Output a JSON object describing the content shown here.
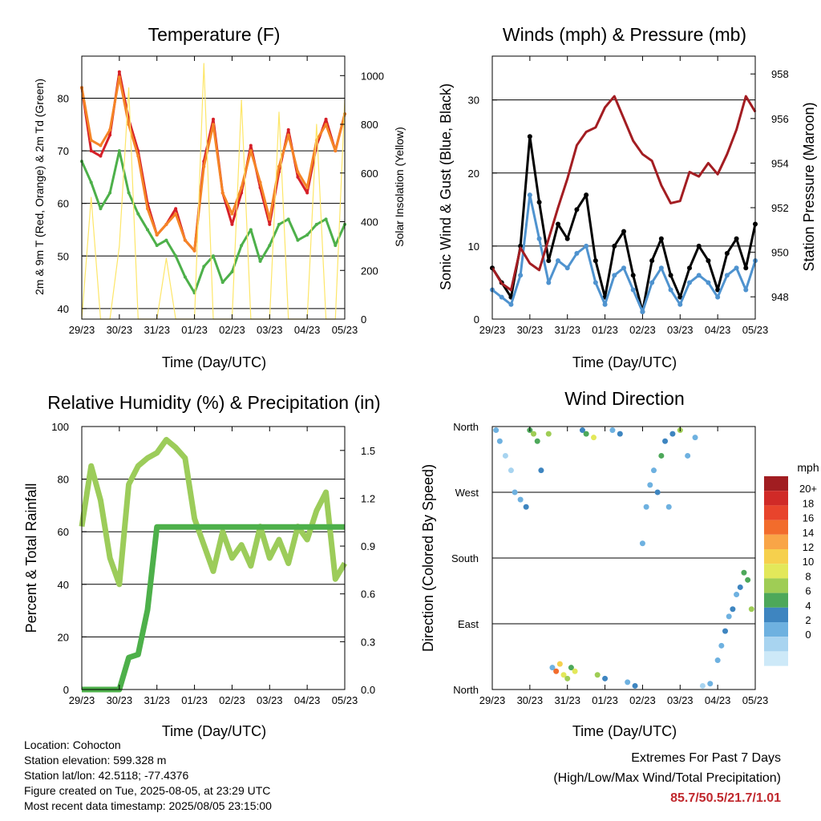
{
  "panels": {
    "temperature": {
      "title": "Temperature (F)",
      "xlabel": "Time (Day/UTC)",
      "ylabel_left": "2m & 9m T (Red, Orange) & 2m Td (Green)",
      "ylabel_right": "Solar Insolation (Yellow)"
    },
    "winds": {
      "title": "Winds (mph) & Pressure (mb)",
      "xlabel": "Time (Day/UTC)",
      "ylabel_left": "Sonic Wind & Gust (Blue, Black)",
      "ylabel_right": "Station Pressure (Maroon)"
    },
    "rh": {
      "title": "Relative Humidity (%) & Precipitation (in)",
      "xlabel": "Time (Day/UTC)",
      "ylabel_left": "Percent & Total Rainfall"
    },
    "wind_direction": {
      "title": "Wind Direction",
      "xlabel": "Time (Day/UTC)",
      "ylabel_left": "Direction (Colored By Speed)"
    }
  },
  "colorbar": {
    "unit": "mph",
    "labels": [
      "20+",
      "18",
      "16",
      "14",
      "12",
      "10",
      "8",
      "6",
      "4",
      "2",
      "0"
    ],
    "colors": [
      "#a11d21",
      "#d02a27",
      "#e8442c",
      "#f26c2c",
      "#f9a547",
      "#f6d04d",
      "#e3e85a",
      "#9fcd55",
      "#4da85a",
      "#3e85c0",
      "#6eb1e0",
      "#a8d4f0",
      "#cde9f8"
    ]
  },
  "info": {
    "location": "Location: Cohocton",
    "elevation": "Station elevation: 599.328 m",
    "latlon": "Station lat/lon: 42.5118; -77.4376",
    "created": "Figure created on Tue, 2025-08-05, at 23:29 UTC",
    "recent": "Most recent data timestamp: 2025/08/05 23:15:00"
  },
  "extremes": {
    "title": "Extremes For Past 7 Days",
    "subtitle": "(High/Low/Max Wind/Total Precipitation)",
    "values": "85.7/50.5/21.7/1.01"
  },
  "chart_data": [
    {
      "type": "line",
      "title": "Temperature (F)",
      "xlabel": "Time (Day/UTC)",
      "ylabel": "2m & 9m T (Red, Orange) & 2m Td (Green)",
      "y2label": "Solar Insolation (Yellow)",
      "x_ticks": [
        "29/23",
        "30/23",
        "31/23",
        "01/23",
        "02/23",
        "03/23",
        "04/23",
        "05/23"
      ],
      "ylim": [
        38,
        88
      ],
      "y_ticks": [
        40,
        50,
        60,
        70,
        80
      ],
      "y2lim": [
        0,
        1080
      ],
      "y2_ticks": [
        0,
        200,
        400,
        600,
        800,
        1000
      ],
      "grid": true,
      "x_days": [
        0,
        0.25,
        0.5,
        0.75,
        1,
        1.25,
        1.5,
        1.75,
        2,
        2.25,
        2.5,
        2.75,
        3,
        3.25,
        3.5,
        3.75,
        4,
        4.25,
        4.5,
        4.75,
        5,
        5.25,
        5.5,
        5.75,
        6,
        6.25,
        6.5,
        6.75,
        7
      ],
      "series": [
        {
          "color": "#d62028",
          "values": [
            82,
            70,
            69,
            73,
            85,
            76,
            70,
            60,
            54,
            56,
            59,
            53,
            51,
            68,
            76,
            62,
            56,
            62,
            71,
            63,
            56,
            66,
            74,
            65,
            62,
            71,
            76,
            70,
            77
          ]
        },
        {
          "color": "#f58426",
          "values": [
            82,
            72,
            71,
            74,
            84,
            75,
            69,
            59,
            54,
            56,
            58,
            53,
            51,
            67,
            75,
            62,
            58,
            63,
            70,
            64,
            57,
            67,
            73,
            66,
            63,
            72,
            75,
            70,
            77
          ]
        },
        {
          "color": "#4db04a",
          "values": [
            68,
            64,
            59,
            62,
            70,
            62,
            58,
            55,
            52,
            53,
            50,
            46,
            43,
            48,
            50,
            45,
            47,
            52,
            55,
            49,
            52,
            56,
            57,
            53,
            54,
            56,
            57,
            52,
            56
          ]
        },
        {
          "color": "#fde668",
          "axis": "y2",
          "values": [
            0,
            500,
            0,
            0,
            300,
            950,
            0,
            0,
            0,
            250,
            0,
            0,
            0,
            1050,
            0,
            0,
            0,
            900,
            0,
            0,
            0,
            850,
            0,
            0,
            0,
            800,
            0,
            0,
            900
          ]
        }
      ]
    },
    {
      "type": "line",
      "title": "Winds (mph) & Pressure (mb)",
      "xlabel": "Time (Day/UTC)",
      "ylabel": "Sonic Wind & Gust (Blue, Black)",
      "y2label": "Station Pressure (Maroon)",
      "x_ticks": [
        "29/23",
        "30/23",
        "31/23",
        "01/23",
        "02/23",
        "03/23",
        "04/23",
        "05/23"
      ],
      "ylim": [
        0,
        36
      ],
      "y_ticks": [
        0,
        10,
        20,
        30
      ],
      "y2lim": [
        947,
        958.8
      ],
      "y2_ticks": [
        948,
        950,
        952,
        954,
        956,
        958
      ],
      "grid": true,
      "x_days": [
        0,
        0.25,
        0.5,
        0.75,
        1,
        1.25,
        1.5,
        1.75,
        2,
        2.25,
        2.5,
        2.75,
        3,
        3.25,
        3.5,
        3.75,
        4,
        4.25,
        4.5,
        4.75,
        5,
        5.25,
        5.5,
        5.75,
        6,
        6.25,
        6.5,
        6.75,
        7
      ],
      "series": [
        {
          "color": "#000000",
          "values": [
            7,
            5,
            3,
            10,
            25,
            16,
            8,
            13,
            11,
            15,
            17,
            8,
            3,
            10,
            12,
            6,
            1,
            8,
            11,
            6,
            3,
            7,
            10,
            8,
            4,
            9,
            11,
            7,
            13
          ]
        },
        {
          "color": "#4f93cf",
          "values": [
            4,
            3,
            2,
            6,
            17,
            11,
            5,
            8,
            7,
            9,
            10,
            5,
            2,
            6,
            7,
            4,
            1,
            5,
            7,
            4,
            2,
            5,
            6,
            5,
            3,
            6,
            7,
            4,
            8
          ]
        },
        {
          "color": "#a31d22",
          "axis": "y2",
          "values": [
            949.3,
            948.6,
            948.3,
            950.2,
            949.5,
            949.2,
            950.6,
            952.0,
            953.3,
            954.8,
            955.4,
            955.6,
            956.5,
            957.0,
            956.0,
            955.0,
            954.4,
            954.1,
            953.0,
            952.2,
            952.3,
            953.6,
            953.4,
            954.0,
            953.5,
            954.4,
            955.5,
            957.0,
            956.3
          ]
        }
      ]
    },
    {
      "type": "line",
      "title": "Relative Humidity (%) & Precipitation (in)",
      "xlabel": "Time (Day/UTC)",
      "ylabel": "Percent & Total Rainfall",
      "x_ticks": [
        "29/23",
        "30/23",
        "31/23",
        "01/23",
        "02/23",
        "03/23",
        "04/23",
        "05/23"
      ],
      "ylim": [
        0,
        100
      ],
      "y_ticks": [
        0,
        20,
        40,
        60,
        80,
        100
      ],
      "y2lim": [
        0,
        1.65
      ],
      "y2_ticks": [
        0.0,
        0.3,
        0.6,
        0.9,
        1.2,
        1.5
      ],
      "grid": true,
      "x_days": [
        0,
        0.25,
        0.5,
        0.75,
        1,
        1.25,
        1.5,
        1.75,
        2,
        2.25,
        2.5,
        2.75,
        3,
        3.25,
        3.5,
        3.75,
        4,
        4.25,
        4.5,
        4.75,
        5,
        5.25,
        5.5,
        5.75,
        6,
        6.25,
        6.5,
        6.75,
        7
      ],
      "series": [
        {
          "color": "#9ccc5a",
          "values": [
            62,
            85,
            72,
            50,
            40,
            78,
            85,
            88,
            90,
            95,
            92,
            88,
            65,
            55,
            45,
            60,
            50,
            55,
            47,
            62,
            50,
            57,
            48,
            62,
            57,
            68,
            75,
            42,
            48
          ]
        },
        {
          "color": "#4db04a",
          "axis": "y2",
          "values": [
            0,
            0,
            0,
            0,
            0,
            0.2,
            0.22,
            0.5,
            1.02,
            1.02,
            1.02,
            1.02,
            1.02,
            1.02,
            1.02,
            1.02,
            1.02,
            1.02,
            1.02,
            1.02,
            1.02,
            1.02,
            1.02,
            1.02,
            1.02,
            1.02,
            1.02,
            1.02,
            1.02
          ]
        }
      ]
    },
    {
      "type": "scatter",
      "title": "Wind Direction",
      "xlabel": "Time (Day/UTC)",
      "ylabel": "Direction (Colored By Speed)",
      "x_ticks": [
        "29/23",
        "30/23",
        "31/23",
        "01/23",
        "02/23",
        "03/23",
        "04/23",
        "05/23"
      ],
      "y_ticks": [
        "North",
        "East",
        "South",
        "West",
        "North"
      ],
      "ylim": [
        0,
        360
      ],
      "grid": true,
      "x_days": [
        0.1,
        0.2,
        0.35,
        0.5,
        0.6,
        0.75,
        0.9,
        1.0,
        1.1,
        1.2,
        1.3,
        1.5,
        1.6,
        1.7,
        1.8,
        1.9,
        2.0,
        2.1,
        2.2,
        2.4,
        2.5,
        2.7,
        2.8,
        3.0,
        3.2,
        3.4,
        3.6,
        3.8,
        4.0,
        4.1,
        4.2,
        4.3,
        4.4,
        4.5,
        4.6,
        4.7,
        4.8,
        5.0,
        5.2,
        5.4,
        5.6,
        5.8,
        6.0,
        6.1,
        6.2,
        6.3,
        6.4,
        6.5,
        6.6,
        6.7,
        6.8,
        6.9
      ],
      "values": [
        355,
        340,
        320,
        300,
        270,
        260,
        250,
        355,
        350,
        340,
        300,
        350,
        30,
        25,
        35,
        20,
        15,
        30,
        25,
        355,
        350,
        345,
        20,
        15,
        355,
        350,
        10,
        5,
        200,
        250,
        280,
        300,
        270,
        320,
        340,
        250,
        350,
        355,
        320,
        345,
        5,
        8,
        40,
        60,
        80,
        100,
        110,
        130,
        140,
        160,
        150,
        110
      ],
      "speeds": [
        4,
        3,
        2,
        2,
        3,
        4,
        5,
        8,
        10,
        7,
        6,
        9,
        4,
        18,
        14,
        12,
        10,
        8,
        11,
        6,
        7,
        12,
        9,
        5,
        4,
        6,
        3,
        5,
        3,
        4,
        3,
        4,
        5,
        7,
        5,
        4,
        6,
        9,
        4,
        3,
        2,
        4,
        3,
        4,
        5,
        4,
        5,
        4,
        6,
        7,
        8,
        9
      ]
    }
  ]
}
